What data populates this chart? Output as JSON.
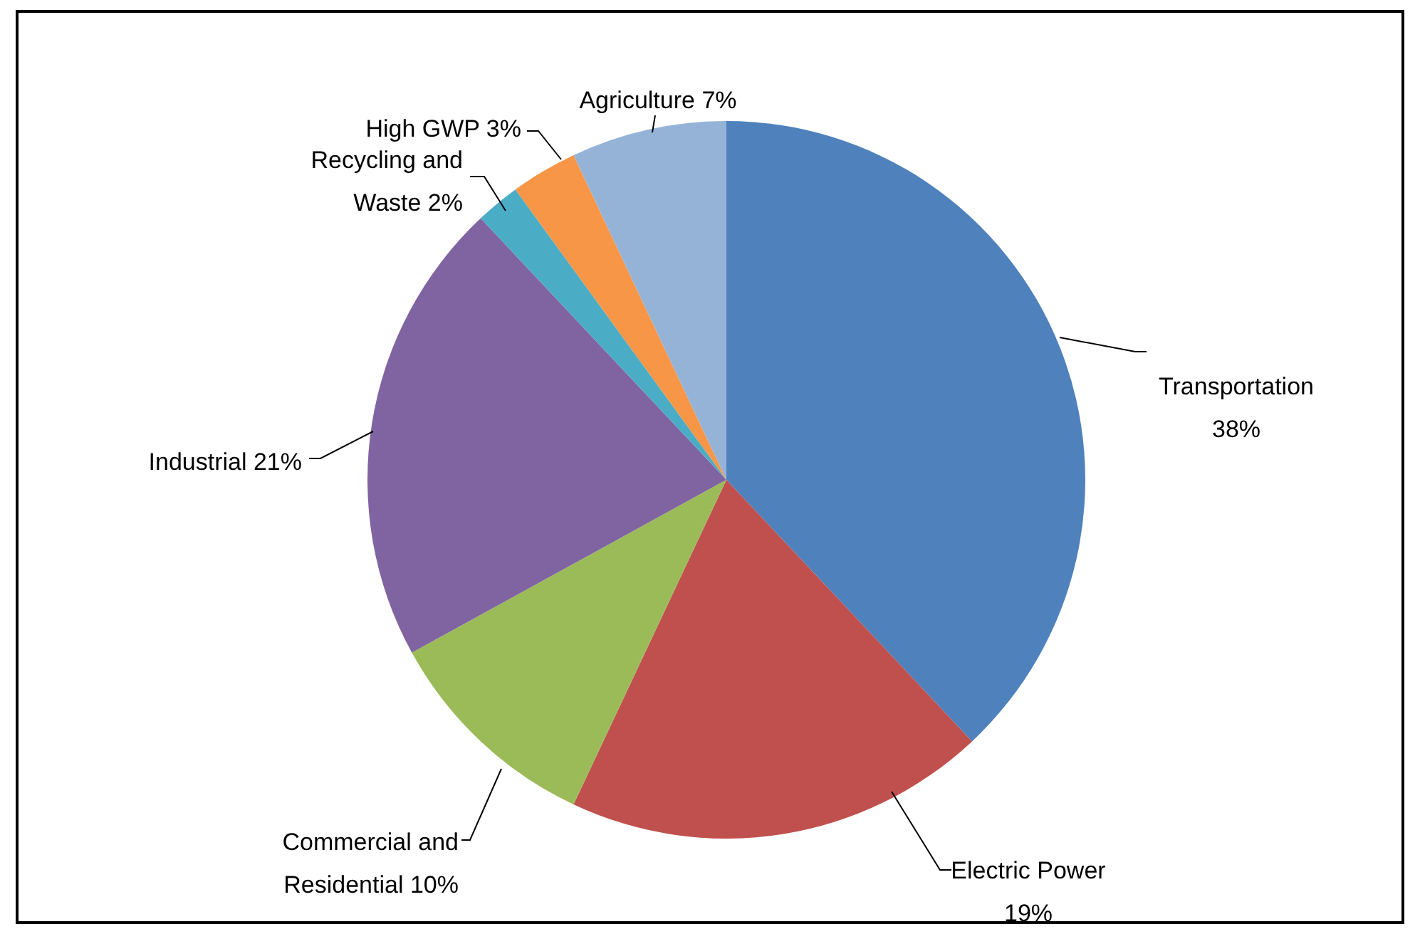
{
  "chart_data": {
    "type": "pie",
    "categories": [
      "Transportation",
      "Electric Power",
      "Commercial and Residential",
      "Industrial",
      "Recycling and Waste",
      "High GWP",
      "Agriculture"
    ],
    "values": [
      38,
      19,
      10,
      21,
      2,
      3,
      7
    ],
    "value_labels": [
      "38%",
      "19%",
      "10%",
      "21%",
      "2%",
      "3%",
      "7%"
    ],
    "colors": [
      "#4f81bd",
      "#c0504d",
      "#9bbb59",
      "#8064a2",
      "#4bacc6",
      "#f79646",
      "#95b3d7"
    ]
  }
}
